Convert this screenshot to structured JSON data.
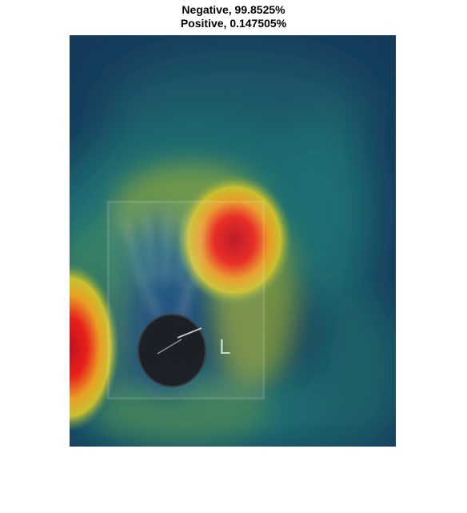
{
  "title": {
    "line1": "Negative, 99.8525%",
    "line2": "Positive, 0.147505%"
  },
  "image": {
    "overlay_letter": "L",
    "colormap": [
      "#143b5c",
      "#1f6e72",
      "#c8b32c",
      "#e8341c"
    ]
  }
}
